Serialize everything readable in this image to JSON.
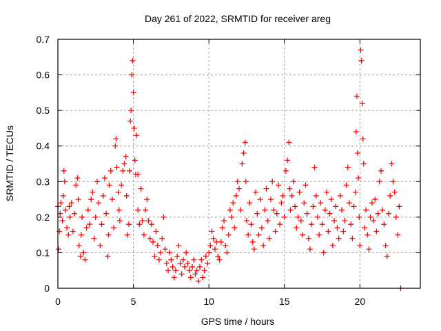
{
  "chart_data": {
    "type": "scatter",
    "title": "Day 261 of 2022, SRMTID for receiver areg",
    "xlabel": "GPS time / hours",
    "ylabel": "SRMTID / TECUs",
    "xlim": [
      0,
      24
    ],
    "ylim": [
      0,
      0.7
    ],
    "x_ticks": [
      0,
      5,
      10,
      15,
      20
    ],
    "x_tick_labels": [
      "0",
      "5",
      "10",
      "15",
      "20"
    ],
    "y_ticks": [
      0,
      0.1,
      0.2,
      0.3,
      0.4,
      0.5,
      0.6,
      0.7
    ],
    "y_tick_labels": [
      "0",
      "0.1",
      "0.2",
      "0.3",
      "0.4",
      "0.5",
      "0.6",
      "0.7"
    ],
    "grid": true,
    "marker": "+",
    "series": [
      {
        "name": "SRMTID",
        "color": "#ff0000",
        "points": [
          [
            0.0,
            0.23
          ],
          [
            0.05,
            0.11
          ],
          [
            0.1,
            0.16
          ],
          [
            0.15,
            0.21
          ],
          [
            0.2,
            0.24
          ],
          [
            0.3,
            0.19
          ],
          [
            0.35,
            0.26
          ],
          [
            0.4,
            0.33
          ],
          [
            0.45,
            0.3
          ],
          [
            0.5,
            0.22
          ],
          [
            0.6,
            0.17
          ],
          [
            0.7,
            0.15
          ],
          [
            0.75,
            0.23
          ],
          [
            0.8,
            0.2
          ],
          [
            0.9,
            0.24
          ],
          [
            1.0,
            0.16
          ],
          [
            1.1,
            0.21
          ],
          [
            1.2,
            0.29
          ],
          [
            1.3,
            0.31
          ],
          [
            1.35,
            0.25
          ],
          [
            1.4,
            0.12
          ],
          [
            1.5,
            0.09
          ],
          [
            1.55,
            0.15
          ],
          [
            1.6,
            0.2
          ],
          [
            1.7,
            0.1
          ],
          [
            1.8,
            0.08
          ],
          [
            1.9,
            0.17
          ],
          [
            2.0,
            0.22
          ],
          [
            2.1,
            0.18
          ],
          [
            2.2,
            0.25
          ],
          [
            2.3,
            0.27
          ],
          [
            2.4,
            0.14
          ],
          [
            2.5,
            0.2
          ],
          [
            2.6,
            0.3
          ],
          [
            2.7,
            0.24
          ],
          [
            2.8,
            0.12
          ],
          [
            2.9,
            0.18
          ],
          [
            3.0,
            0.26
          ],
          [
            3.1,
            0.31
          ],
          [
            3.2,
            0.21
          ],
          [
            3.3,
            0.09
          ],
          [
            3.35,
            0.15
          ],
          [
            3.4,
            0.29
          ],
          [
            3.5,
            0.33
          ],
          [
            3.6,
            0.25
          ],
          [
            3.7,
            0.17
          ],
          [
            3.8,
            0.4
          ],
          [
            3.85,
            0.42
          ],
          [
            3.9,
            0.34
          ],
          [
            4.0,
            0.27
          ],
          [
            4.05,
            0.22
          ],
          [
            4.1,
            0.19
          ],
          [
            4.2,
            0.29
          ],
          [
            4.3,
            0.33
          ],
          [
            4.4,
            0.35
          ],
          [
            4.5,
            0.37
          ],
          [
            4.55,
            0.26
          ],
          [
            4.6,
            0.15
          ],
          [
            4.7,
            0.18
          ],
          [
            4.75,
            0.33
          ],
          [
            4.8,
            0.47
          ],
          [
            4.85,
            0.5
          ],
          [
            4.9,
            0.6
          ],
          [
            4.95,
            0.64
          ],
          [
            5.0,
            0.55
          ],
          [
            5.05,
            0.45
          ],
          [
            5.1,
            0.36
          ],
          [
            5.15,
            0.32
          ],
          [
            5.2,
            0.43
          ],
          [
            5.3,
            0.32
          ],
          [
            5.3,
            0.22
          ],
          [
            5.4,
            0.18
          ],
          [
            5.5,
            0.28
          ],
          [
            5.6,
            0.19
          ],
          [
            5.7,
            0.15
          ],
          [
            5.8,
            0.22
          ],
          [
            5.9,
            0.25
          ],
          [
            6.0,
            0.19
          ],
          [
            6.1,
            0.14
          ],
          [
            6.2,
            0.18
          ],
          [
            6.3,
            0.13
          ],
          [
            6.4,
            0.09
          ],
          [
            6.5,
            0.16
          ],
          [
            6.6,
            0.12
          ],
          [
            6.7,
            0.08
          ],
          [
            6.8,
            0.1
          ],
          [
            6.9,
            0.14
          ],
          [
            7.0,
            0.2
          ],
          [
            7.1,
            0.11
          ],
          [
            7.2,
            0.07
          ],
          [
            7.3,
            0.05
          ],
          [
            7.4,
            0.1
          ],
          [
            7.5,
            0.08
          ],
          [
            7.6,
            0.06
          ],
          [
            7.7,
            0.03
          ],
          [
            7.8,
            0.05
          ],
          [
            7.9,
            0.09
          ],
          [
            8.0,
            0.12
          ],
          [
            8.1,
            0.07
          ],
          [
            8.2,
            0.04
          ],
          [
            8.3,
            0.08
          ],
          [
            8.4,
            0.06
          ],
          [
            8.5,
            0.1
          ],
          [
            8.6,
            0.07
          ],
          [
            8.7,
            0.05
          ],
          [
            8.8,
            0.03
          ],
          [
            8.9,
            0.06
          ],
          [
            9.0,
            0.08
          ],
          [
            9.1,
            0.04
          ],
          [
            9.2,
            0.05
          ],
          [
            9.3,
            0.02
          ],
          [
            9.4,
            0.06
          ],
          [
            9.5,
            0.08
          ],
          [
            9.6,
            0.03
          ],
          [
            9.7,
            0.05
          ],
          [
            9.8,
            0.09
          ],
          [
            9.9,
            0.07
          ],
          [
            10.0,
            0.1
          ],
          [
            10.1,
            0.12
          ],
          [
            10.2,
            0.16
          ],
          [
            10.3,
            0.14
          ],
          [
            10.4,
            0.11
          ],
          [
            10.5,
            0.13
          ],
          [
            10.6,
            0.09
          ],
          [
            10.7,
            0.08
          ],
          [
            10.8,
            0.13
          ],
          [
            10.9,
            0.17
          ],
          [
            11.0,
            0.19
          ],
          [
            11.1,
            0.12
          ],
          [
            11.2,
            0.1
          ],
          [
            11.3,
            0.15
          ],
          [
            11.4,
            0.22
          ],
          [
            11.5,
            0.2
          ],
          [
            11.6,
            0.24
          ],
          [
            11.7,
            0.17
          ],
          [
            11.8,
            0.26
          ],
          [
            11.9,
            0.3
          ],
          [
            12.0,
            0.28
          ],
          [
            12.1,
            0.22
          ],
          [
            12.2,
            0.35
          ],
          [
            12.3,
            0.38
          ],
          [
            12.4,
            0.41
          ],
          [
            12.45,
            0.3
          ],
          [
            12.5,
            0.19
          ],
          [
            12.6,
            0.15
          ],
          [
            12.7,
            0.24
          ],
          [
            12.8,
            0.18
          ],
          [
            12.9,
            0.13
          ],
          [
            13.0,
            0.11
          ],
          [
            13.1,
            0.27
          ],
          [
            13.2,
            0.21
          ],
          [
            13.3,
            0.15
          ],
          [
            13.4,
            0.25
          ],
          [
            13.5,
            0.17
          ],
          [
            13.6,
            0.12
          ],
          [
            13.7,
            0.22
          ],
          [
            13.8,
            0.28
          ],
          [
            13.9,
            0.19
          ],
          [
            14.0,
            0.14
          ],
          [
            14.1,
            0.25
          ],
          [
            14.2,
            0.3
          ],
          [
            14.3,
            0.22
          ],
          [
            14.4,
            0.16
          ],
          [
            14.5,
            0.21
          ],
          [
            14.6,
            0.29
          ],
          [
            14.7,
            0.18
          ],
          [
            14.8,
            0.24
          ],
          [
            14.9,
            0.26
          ],
          [
            15.0,
            0.2
          ],
          [
            15.1,
            0.33
          ],
          [
            15.2,
            0.36
          ],
          [
            15.3,
            0.41
          ],
          [
            15.35,
            0.28
          ],
          [
            15.4,
            0.22
          ],
          [
            15.5,
            0.26
          ],
          [
            15.6,
            0.3
          ],
          [
            15.7,
            0.23
          ],
          [
            15.8,
            0.17
          ],
          [
            15.9,
            0.2
          ],
          [
            16.0,
            0.27
          ],
          [
            16.1,
            0.19
          ],
          [
            16.2,
            0.15
          ],
          [
            16.3,
            0.24
          ],
          [
            16.4,
            0.29
          ],
          [
            16.5,
            0.21
          ],
          [
            16.6,
            0.14
          ],
          [
            16.7,
            0.11
          ],
          [
            16.8,
            0.18
          ],
          [
            16.9,
            0.23
          ],
          [
            17.0,
            0.34
          ],
          [
            17.1,
            0.26
          ],
          [
            17.2,
            0.2
          ],
          [
            17.3,
            0.15
          ],
          [
            17.4,
            0.24
          ],
          [
            17.5,
            0.18
          ],
          [
            17.6,
            0.1
          ],
          [
            17.7,
            0.22
          ],
          [
            17.8,
            0.27
          ],
          [
            17.9,
            0.16
          ],
          [
            18.0,
            0.21
          ],
          [
            18.1,
            0.25
          ],
          [
            18.2,
            0.12
          ],
          [
            18.3,
            0.19
          ],
          [
            18.4,
            0.23
          ],
          [
            18.5,
            0.17
          ],
          [
            18.6,
            0.14
          ],
          [
            18.7,
            0.26
          ],
          [
            18.8,
            0.22
          ],
          [
            18.9,
            0.16
          ],
          [
            19.0,
            0.19
          ],
          [
            19.1,
            0.29
          ],
          [
            19.2,
            0.34
          ],
          [
            19.3,
            0.24
          ],
          [
            19.4,
            0.18
          ],
          [
            19.5,
            0.14
          ],
          [
            19.6,
            0.23
          ],
          [
            19.7,
            0.27
          ],
          [
            19.75,
            0.44
          ],
          [
            19.8,
            0.54
          ],
          [
            19.85,
            0.38
          ],
          [
            19.9,
            0.31
          ],
          [
            19.95,
            0.2
          ],
          [
            20.0,
            0.12
          ],
          [
            20.05,
            0.67
          ],
          [
            20.1,
            0.64
          ],
          [
            20.15,
            0.52
          ],
          [
            20.2,
            0.42
          ],
          [
            20.25,
            0.35
          ],
          [
            20.3,
            0.17
          ],
          [
            20.4,
            0.22
          ],
          [
            20.5,
            0.15
          ],
          [
            20.6,
            0.11
          ],
          [
            20.7,
            0.2
          ],
          [
            20.8,
            0.24
          ],
          [
            20.9,
            0.19
          ],
          [
            21.0,
            0.25
          ],
          [
            21.1,
            0.16
          ],
          [
            21.2,
            0.21
          ],
          [
            21.3,
            0.3
          ],
          [
            21.4,
            0.33
          ],
          [
            21.5,
            0.22
          ],
          [
            21.6,
            0.18
          ],
          [
            21.7,
            0.12
          ],
          [
            21.8,
            0.09
          ],
          [
            21.9,
            0.21
          ],
          [
            22.0,
            0.26
          ],
          [
            22.1,
            0.35
          ],
          [
            22.2,
            0.3
          ],
          [
            22.3,
            0.27
          ],
          [
            22.4,
            0.2
          ],
          [
            22.5,
            0.15
          ],
          [
            22.6,
            0.23
          ],
          [
            22.7,
            0.0
          ]
        ]
      }
    ]
  }
}
